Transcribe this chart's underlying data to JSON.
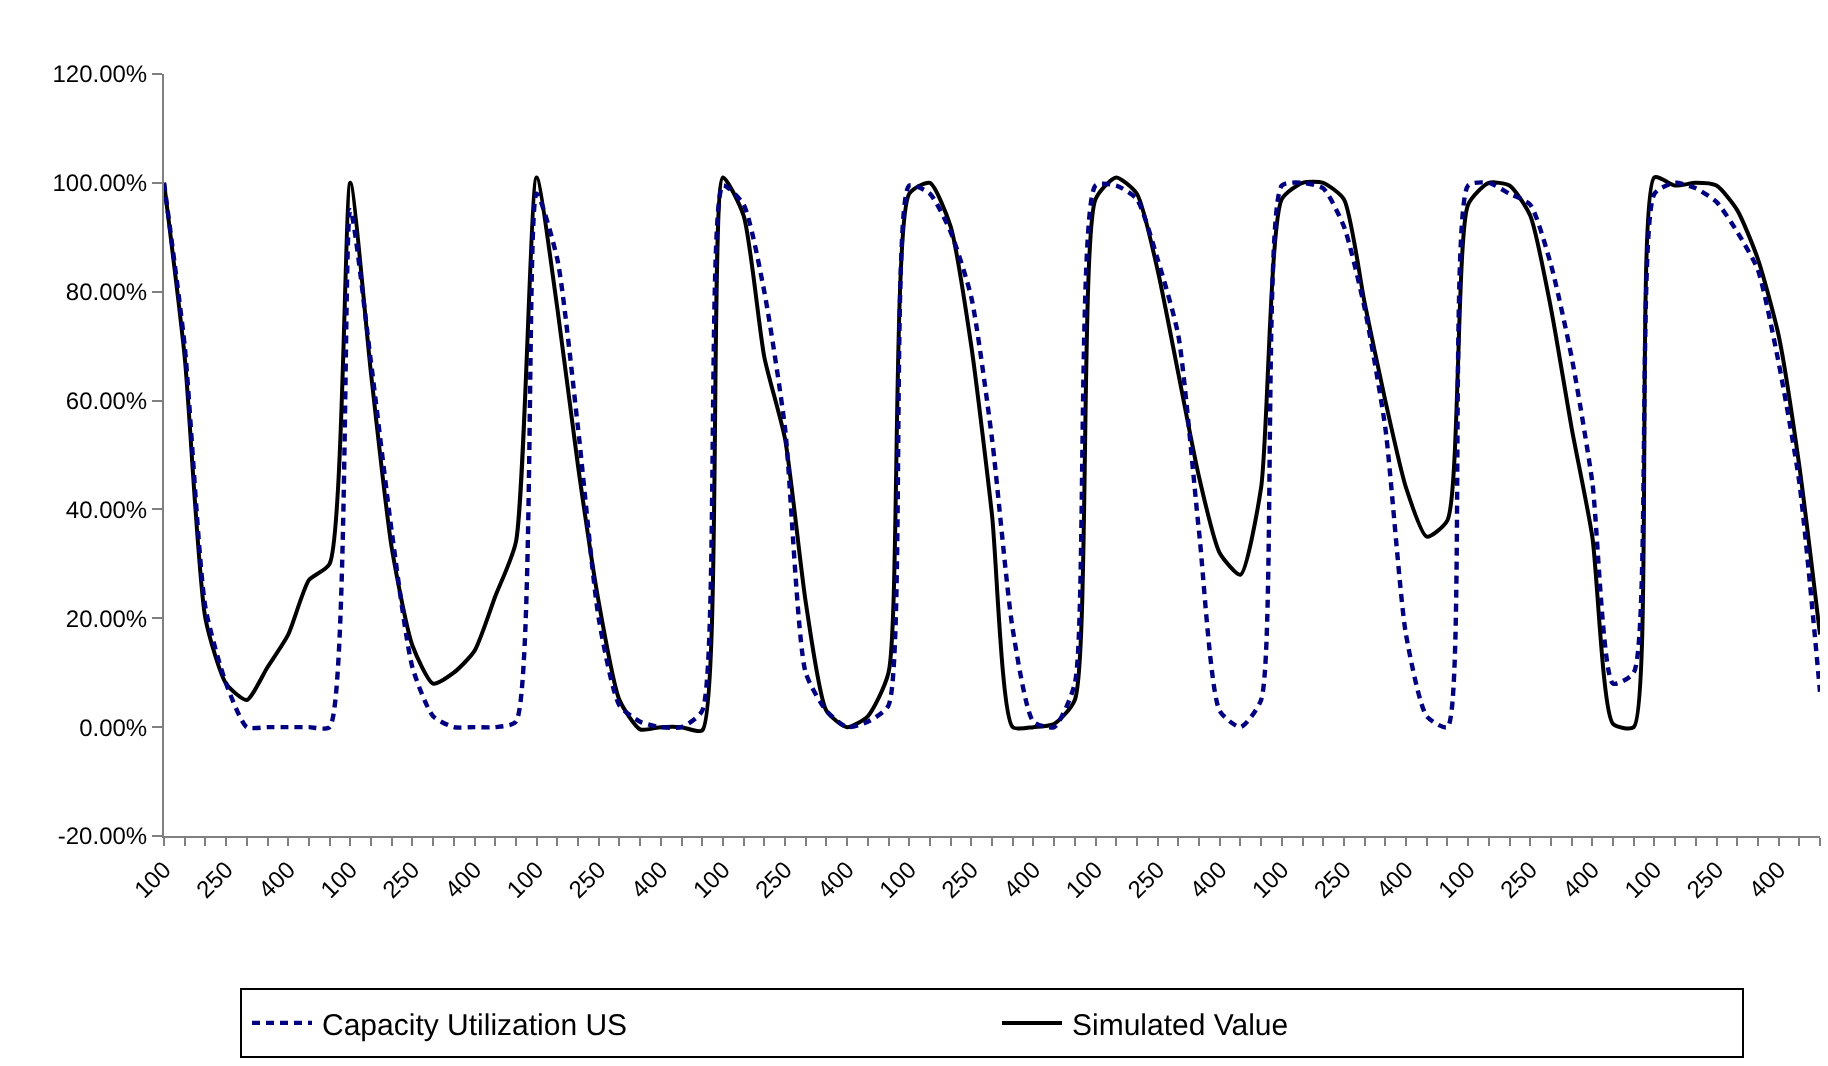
{
  "chart_data": {
    "type": "line",
    "categories": [
      "100",
      null,
      null,
      "250",
      null,
      null,
      "400",
      null,
      null,
      "100",
      null,
      null,
      "250",
      null,
      null,
      "400",
      null,
      null,
      "100",
      null,
      null,
      "250",
      null,
      null,
      "400",
      null,
      null,
      "100",
      null,
      null,
      "250",
      null,
      null,
      "400",
      null,
      null,
      "100",
      null,
      null,
      "250",
      null,
      null,
      "400",
      null,
      null,
      "100",
      null,
      null,
      "250",
      null,
      null,
      "400",
      null,
      null,
      "100",
      null,
      null,
      "250",
      null,
      null,
      "400",
      null,
      null,
      "100",
      null,
      null,
      "250",
      null,
      null,
      "400",
      null,
      null,
      "100",
      null,
      null,
      "250",
      null,
      null,
      "400",
      null,
      null
    ],
    "series": [
      {
        "name": "Capacity Utilization US",
        "color": "#000080",
        "line_style": "dashed",
        "values": [
          100,
          70,
          22,
          8,
          0,
          0,
          0,
          0,
          0,
          95,
          67,
          36,
          11,
          2,
          0,
          0,
          0,
          1,
          98,
          86,
          55,
          20,
          4,
          1,
          0,
          0,
          3,
          99.5,
          96,
          80,
          55,
          10,
          3,
          0,
          1,
          4,
          99.5,
          98,
          91,
          79,
          53,
          18,
          1,
          0,
          8,
          99.5,
          99.5,
          97,
          86,
          72,
          36,
          3,
          0,
          5,
          99.5,
          100,
          99,
          92,
          77,
          55,
          17,
          2,
          0,
          99.5,
          100,
          98,
          96,
          85,
          68,
          45,
          8,
          10,
          98,
          100,
          99,
          96.5,
          91,
          84,
          67,
          45,
          6.5
        ]
      },
      {
        "name": "Simulated Value",
        "color": "#000000",
        "line_style": "solid",
        "values": [
          100,
          68,
          20,
          8,
          5,
          11,
          17,
          27,
          30,
          100,
          65,
          33,
          15,
          8,
          10,
          14,
          24,
          34,
          101,
          77,
          48,
          23,
          5,
          -0.4,
          0,
          0,
          -0.6,
          101,
          94,
          68,
          53,
          23,
          3,
          0,
          2,
          10,
          98,
          100,
          92,
          70,
          39,
          0,
          0,
          0.6,
          5,
          97,
          101,
          98,
          84,
          65,
          46,
          32,
          28,
          44,
          97,
          100,
          100,
          97,
          78,
          60,
          44,
          35,
          38,
          96,
          100,
          99.5,
          94,
          77,
          55,
          35,
          0.6,
          0,
          101,
          99.5,
          100,
          99.5,
          95,
          86,
          72,
          48,
          17
        ]
      }
    ],
    "ylim": [
      -20,
      120
    ],
    "yticks": [
      {
        "value": -20,
        "label": "-20.00%"
      },
      {
        "value": 0,
        "label": "0.00%"
      },
      {
        "value": 20,
        "label": "20.00%"
      },
      {
        "value": 40,
        "label": "40.00%"
      },
      {
        "value": 60,
        "label": "60.00%"
      },
      {
        "value": 80,
        "label": "80.00%"
      },
      {
        "value": 100,
        "label": "100.00%"
      },
      {
        "value": 120,
        "label": "120.00%"
      }
    ],
    "legend": "bottom",
    "marker": "none"
  }
}
